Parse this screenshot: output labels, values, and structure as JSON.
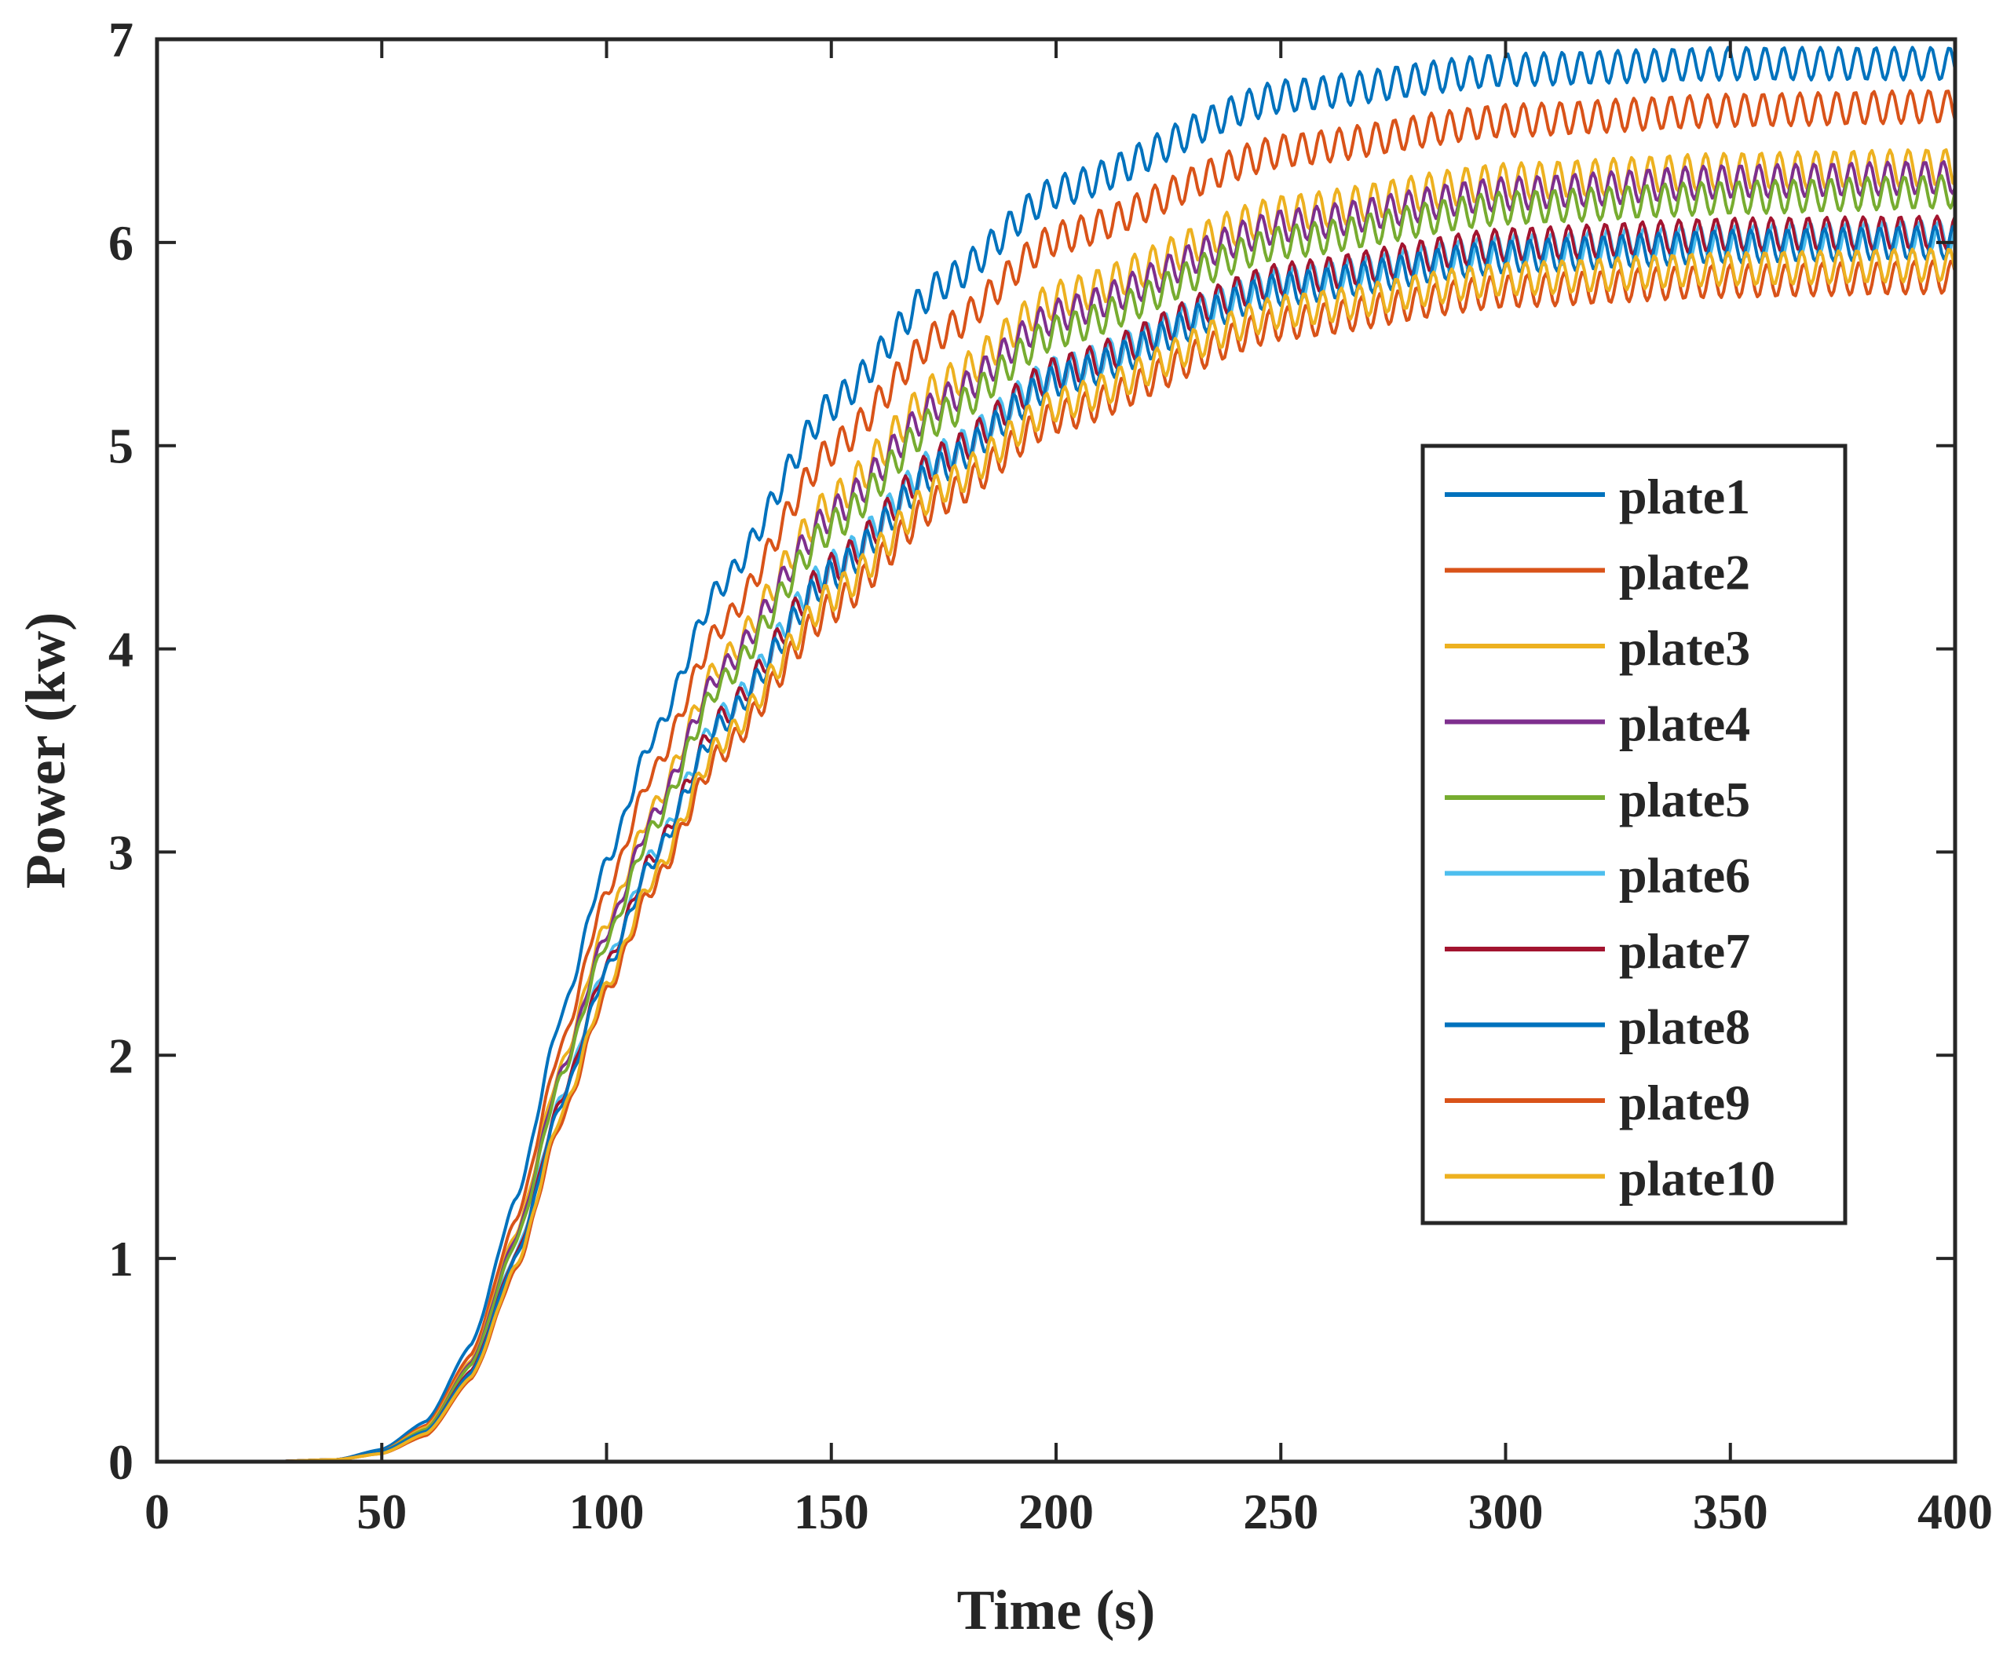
{
  "chart_data": {
    "type": "line",
    "title": "",
    "xlabel": "Time (s)",
    "ylabel": "Power (kw)",
    "xlim": [
      0,
      400
    ],
    "ylim": [
      0,
      7
    ],
    "xticks": [
      0,
      50,
      100,
      150,
      200,
      250,
      300,
      350,
      400
    ],
    "yticks": [
      0,
      1,
      2,
      3,
      4,
      5,
      6,
      7
    ],
    "xtick_labels": [
      "0",
      "50",
      "100",
      "150",
      "200",
      "250",
      "300",
      "350",
      "400"
    ],
    "ytick_labels": [
      "0",
      "1",
      "2",
      "3",
      "4",
      "5",
      "6",
      "7"
    ],
    "grid": false,
    "legend_position": "center-right",
    "x": [
      0,
      25,
      40,
      50,
      60,
      70,
      80,
      90,
      100,
      110,
      125,
      150,
      175,
      200,
      250,
      300,
      350,
      400
    ],
    "series": [
      {
        "name": "plate1",
        "color": "#0072BD",
        "oscillation": 0.08,
        "values": [
          0,
          0,
          0.01,
          0.06,
          0.2,
          0.58,
          1.3,
          2.2,
          2.95,
          3.55,
          4.3,
          5.2,
          5.8,
          6.25,
          6.72,
          6.85,
          6.88,
          6.88
        ]
      },
      {
        "name": "plate2",
        "color": "#D95319",
        "oscillation": 0.08,
        "values": [
          0,
          0,
          0.01,
          0.05,
          0.18,
          0.53,
          1.2,
          2.05,
          2.8,
          3.38,
          4.1,
          4.98,
          5.56,
          6.02,
          6.45,
          6.6,
          6.65,
          6.67
        ]
      },
      {
        "name": "plate3",
        "color": "#EDB120",
        "oscillation": 0.09,
        "values": [
          0,
          0,
          0.01,
          0.05,
          0.17,
          0.5,
          1.13,
          1.95,
          2.65,
          3.2,
          3.92,
          4.72,
          5.3,
          5.72,
          6.14,
          6.3,
          6.35,
          6.37
        ]
      },
      {
        "name": "plate4",
        "color": "#7E2F8E",
        "oscillation": 0.08,
        "values": [
          0,
          0,
          0.01,
          0.05,
          0.16,
          0.49,
          1.11,
          1.92,
          2.6,
          3.16,
          3.88,
          4.66,
          5.22,
          5.64,
          6.08,
          6.24,
          6.3,
          6.32
        ]
      },
      {
        "name": "plate5",
        "color": "#77AC30",
        "oscillation": 0.08,
        "values": [
          0,
          0,
          0.01,
          0.05,
          0.16,
          0.48,
          1.09,
          1.9,
          2.56,
          3.11,
          3.82,
          4.6,
          5.15,
          5.56,
          6.0,
          6.17,
          6.22,
          6.25
        ]
      },
      {
        "name": "plate6",
        "color": "#4DBEEE",
        "oscillation": 0.08,
        "values": [
          0,
          0,
          0.01,
          0.05,
          0.15,
          0.45,
          1.03,
          1.8,
          2.45,
          2.98,
          3.66,
          4.4,
          4.95,
          5.36,
          5.8,
          5.96,
          6.01,
          6.03
        ]
      },
      {
        "name": "plate7",
        "color": "#A2142F",
        "oscillation": 0.08,
        "values": [
          0,
          0,
          0.01,
          0.05,
          0.15,
          0.45,
          1.02,
          1.79,
          2.44,
          2.97,
          3.65,
          4.39,
          4.94,
          5.36,
          5.82,
          5.99,
          6.04,
          6.05
        ]
      },
      {
        "name": "plate8",
        "color": "#0072BD",
        "oscillation": 0.08,
        "values": [
          0,
          0,
          0.01,
          0.05,
          0.15,
          0.44,
          1.01,
          1.77,
          2.42,
          2.95,
          3.62,
          4.36,
          4.9,
          5.32,
          5.77,
          5.93,
          5.98,
          6.0
        ]
      },
      {
        "name": "plate9",
        "color": "#D95319",
        "oscillation": 0.08,
        "values": [
          0,
          0,
          0.01,
          0.04,
          0.13,
          0.41,
          0.95,
          1.68,
          2.31,
          2.82,
          3.48,
          4.2,
          4.74,
          5.14,
          5.6,
          5.76,
          5.81,
          5.83
        ]
      },
      {
        "name": "plate10",
        "color": "#EDB120",
        "oscillation": 0.08,
        "values": [
          0,
          0,
          0.01,
          0.04,
          0.14,
          0.42,
          0.97,
          1.71,
          2.34,
          2.86,
          3.53,
          4.26,
          4.8,
          5.2,
          5.66,
          5.82,
          5.87,
          5.89
        ]
      }
    ]
  }
}
